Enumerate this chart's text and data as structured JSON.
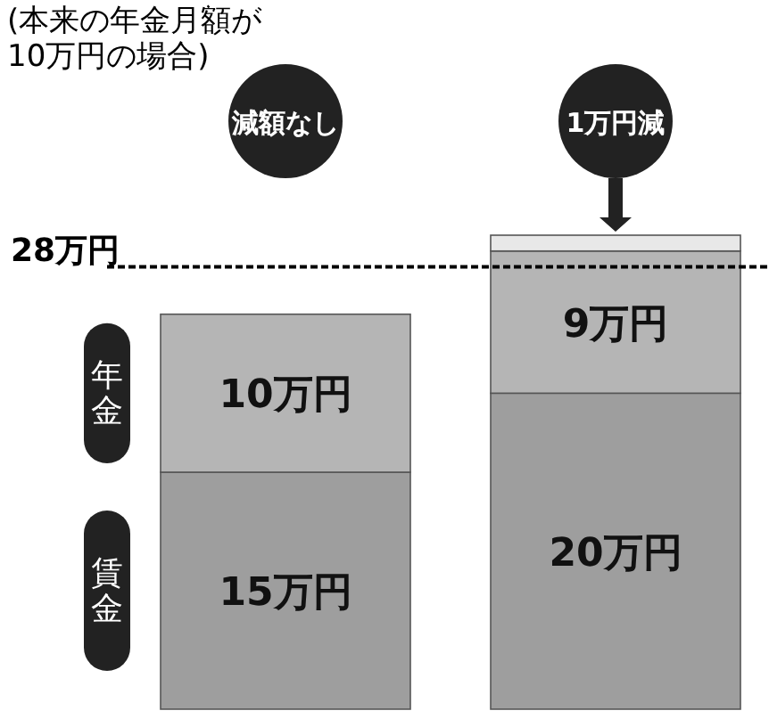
{
  "chart_data": {
    "type": "bar",
    "stacked": true,
    "categories": [
      "減額なし",
      "1万円減"
    ],
    "series": [
      {
        "name": "賃金",
        "color": "#9e9e9e",
        "values": [
          15,
          20
        ],
        "value_labels": [
          "15万円",
          "20万円"
        ]
      },
      {
        "name": "年金",
        "color": "#b5b5b5",
        "values": [
          10,
          9
        ],
        "value_labels": [
          "10万円",
          "9万円"
        ]
      },
      {
        "color": "#e8e8e8",
        "values": [
          null,
          1
        ]
      }
    ],
    "ref_lines": [
      {
        "axis": "y",
        "value": 28,
        "label": "28万円",
        "line_style": "dashed",
        "color": "#000000"
      }
    ],
    "annotations": [
      "(本来の年金月額が10万円の場合)"
    ]
  }
}
